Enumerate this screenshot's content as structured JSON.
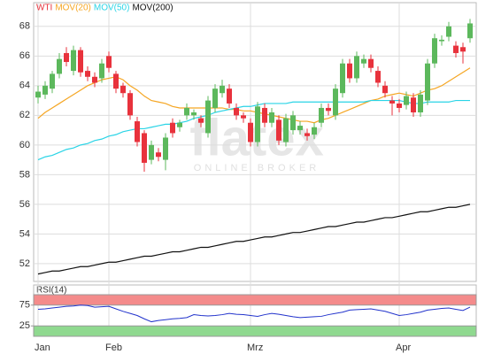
{
  "chart_data": [
    {
      "type": "candlestick",
      "categories": [
        "Jan",
        null,
        null,
        null,
        null,
        null,
        null,
        null,
        null,
        null,
        "Feb",
        null,
        null,
        null,
        null,
        null,
        null,
        null,
        null,
        null,
        null,
        null,
        null,
        null,
        null,
        null,
        null,
        null,
        null,
        null,
        "Mrz",
        null,
        null,
        null,
        null,
        null,
        null,
        null,
        null,
        null,
        null,
        null,
        null,
        null,
        null,
        null,
        null,
        null,
        null,
        null,
        null,
        "Apr",
        null,
        null,
        null,
        null,
        null,
        null,
        null,
        null,
        null,
        null
      ],
      "watermark": "flatex",
      "watermark_subtitle": "ONLINE BROKER",
      "ohlc": {
        "name": "WTI",
        "up_color": "#5cb85c",
        "down_color": "#e8323c",
        "open": [
          63.2,
          63.4,
          63.8,
          64.8,
          66.2,
          65.0,
          66.4,
          65.0,
          64.6,
          64.5,
          66.0,
          64.8,
          64.0,
          63.5,
          61.6,
          60.8,
          59.0,
          59.5,
          59.0,
          61.5,
          61.2,
          62.0,
          62.0,
          61.8,
          60.8,
          62.5,
          63.5,
          63.8,
          62.5,
          62.0,
          61.5,
          60.2,
          62.5,
          61.5,
          61.7,
          60.2,
          61.0,
          61.0,
          60.8,
          60.7,
          61.5,
          62.5,
          62.0,
          63.5,
          65.5,
          64.5,
          65.5,
          65.8,
          65.0,
          64.0,
          63.0,
          62.8,
          62.7,
          63.2,
          62.2,
          63.0,
          65.5,
          67.0,
          67.3,
          66.7,
          66.6,
          67.2
        ],
        "high": [
          64.0,
          64.3,
          65.0,
          66.2,
          66.6,
          66.7,
          66.6,
          65.3,
          64.9,
          65.8,
          66.3,
          65.0,
          64.2,
          63.7,
          61.9,
          61.0,
          60.3,
          59.8,
          60.8,
          61.8,
          61.7,
          62.8,
          62.4,
          62.0,
          63.3,
          64.1,
          64.4,
          64.1,
          62.8,
          62.2,
          61.8,
          62.9,
          62.8,
          62.5,
          62.0,
          62.1,
          62.3,
          61.6,
          61.1,
          61.5,
          62.8,
          62.8,
          64.1,
          65.8,
          65.8,
          66.3,
          66.1,
          66.1,
          65.3,
          64.3,
          63.3,
          63.1,
          63.6,
          63.5,
          63.7,
          65.8,
          67.5,
          67.4,
          68.3,
          67.0,
          66.9,
          68.5
        ],
        "low": [
          62.8,
          63.1,
          63.5,
          64.5,
          65.3,
          64.7,
          64.6,
          64.3,
          63.9,
          64.2,
          64.9,
          63.5,
          63.2,
          61.7,
          59.9,
          58.2,
          58.7,
          58.9,
          58.3,
          60.5,
          60.9,
          61.7,
          61.7,
          61.2,
          60.5,
          62.2,
          63.2,
          62.5,
          61.7,
          61.5,
          59.9,
          59.9,
          61.2,
          61.2,
          60.0,
          59.9,
          60.7,
          60.7,
          60.3,
          60.4,
          61.2,
          62.0,
          61.7,
          63.2,
          64.2,
          64.2,
          65.2,
          64.9,
          63.9,
          63.2,
          62.0,
          62.2,
          62.4,
          61.9,
          61.9,
          62.7,
          65.2,
          66.7,
          67.0,
          65.9,
          65.5,
          66.9
        ],
        "close": [
          63.6,
          64.0,
          64.8,
          65.8,
          65.6,
          66.4,
          64.9,
          64.6,
          64.2,
          65.5,
          65.2,
          63.8,
          63.5,
          62.0,
          60.2,
          58.8,
          60.0,
          59.2,
          60.5,
          60.8,
          61.5,
          62.5,
          62.2,
          61.5,
          63.0,
          63.8,
          64.0,
          62.8,
          62.0,
          61.8,
          60.2,
          62.6,
          61.5,
          62.2,
          60.3,
          61.8,
          62.0,
          61.3,
          60.6,
          61.2,
          62.5,
          62.3,
          63.8,
          65.5,
          64.5,
          66.0,
          65.8,
          65.2,
          64.2,
          63.5,
          62.8,
          62.5,
          63.3,
          62.2,
          63.4,
          65.5,
          67.2,
          67.1,
          68.0,
          66.2,
          66.3,
          68.2
        ]
      },
      "series": [
        {
          "name": "MOV(20)",
          "color": "#f5a623",
          "values": [
            61.8,
            62.2,
            62.5,
            62.8,
            63.1,
            63.4,
            63.7,
            64.0,
            64.2,
            64.4,
            64.5,
            64.6,
            64.4,
            64.0,
            63.7,
            63.3,
            63.0,
            62.9,
            62.8,
            62.6,
            62.5,
            62.5,
            62.5,
            62.5,
            62.5,
            62.5,
            62.5,
            62.4,
            62.4,
            62.3,
            62.3,
            62.2,
            62.1,
            62.0,
            61.9,
            61.8,
            61.7,
            61.6,
            61.6,
            61.5,
            61.7,
            61.8,
            62.0,
            62.2,
            62.4,
            62.6,
            62.8,
            63.0,
            63.1,
            63.3,
            63.4,
            63.5,
            63.4,
            63.3,
            63.5,
            63.7,
            63.8,
            64.0,
            64.3,
            64.6,
            64.9,
            65.2
          ]
        },
        {
          "name": "MOV(50)",
          "color": "#2ad4e6",
          "values": [
            59.0,
            59.2,
            59.3,
            59.5,
            59.7,
            59.8,
            60.0,
            60.1,
            60.3,
            60.4,
            60.6,
            60.7,
            60.9,
            61.0,
            61.1,
            61.1,
            61.2,
            61.3,
            61.4,
            61.4,
            61.5,
            61.6,
            61.8,
            61.9,
            62.0,
            62.2,
            62.3,
            62.4,
            62.5,
            62.6,
            62.6,
            62.7,
            62.8,
            62.8,
            62.8,
            62.8,
            62.9,
            62.9,
            62.9,
            62.9,
            62.9,
            62.9,
            62.9,
            62.9,
            62.9,
            62.9,
            62.9,
            63.0,
            63.0,
            63.0,
            63.0,
            63.0,
            62.9,
            62.8,
            62.8,
            62.9,
            62.9,
            62.9,
            62.9,
            63.0,
            63.0,
            63.0
          ]
        },
        {
          "name": "MOV(200)",
          "color": "#111111",
          "values": [
            51.3,
            51.4,
            51.5,
            51.5,
            51.6,
            51.7,
            51.8,
            51.8,
            51.9,
            52.0,
            52.1,
            52.1,
            52.2,
            52.3,
            52.4,
            52.5,
            52.5,
            52.6,
            52.7,
            52.8,
            52.8,
            52.9,
            53.0,
            53.1,
            53.1,
            53.2,
            53.3,
            53.4,
            53.5,
            53.5,
            53.6,
            53.7,
            53.8,
            53.8,
            53.9,
            54.0,
            54.1,
            54.1,
            54.2,
            54.3,
            54.4,
            54.5,
            54.5,
            54.6,
            54.7,
            54.8,
            54.8,
            54.9,
            55.0,
            55.1,
            55.1,
            55.2,
            55.3,
            55.4,
            55.5,
            55.5,
            55.6,
            55.7,
            55.8,
            55.8,
            55.9,
            56.0
          ]
        }
      ],
      "ylim": [
        50.8,
        69.6
      ],
      "yticks": [
        52,
        54,
        56,
        58,
        60,
        62,
        64,
        66,
        68
      ],
      "grid": true
    },
    {
      "type": "line",
      "title": "RSI(14)",
      "color": "#2233cc",
      "values": [
        65,
        66,
        68,
        70,
        72,
        73,
        75,
        74,
        70,
        71,
        72,
        66,
        60,
        55,
        50,
        42,
        35,
        38,
        40,
        42,
        43,
        45,
        52,
        50,
        49,
        50,
        52,
        55,
        53,
        52,
        50,
        48,
        52,
        55,
        53,
        50,
        47,
        45,
        46,
        47,
        48,
        52,
        55,
        58,
        63,
        64,
        65,
        66,
        63,
        60,
        55,
        50,
        52,
        55,
        58,
        63,
        65,
        67,
        68,
        65,
        62,
        70
      ],
      "ylim": [
        0,
        100
      ],
      "yticks": [
        25,
        75
      ],
      "bands": [
        {
          "from": 75,
          "to": 100,
          "color": "#f48b8b"
        },
        {
          "from": 0,
          "to": 25,
          "color": "#8fd98f"
        }
      ]
    }
  ]
}
